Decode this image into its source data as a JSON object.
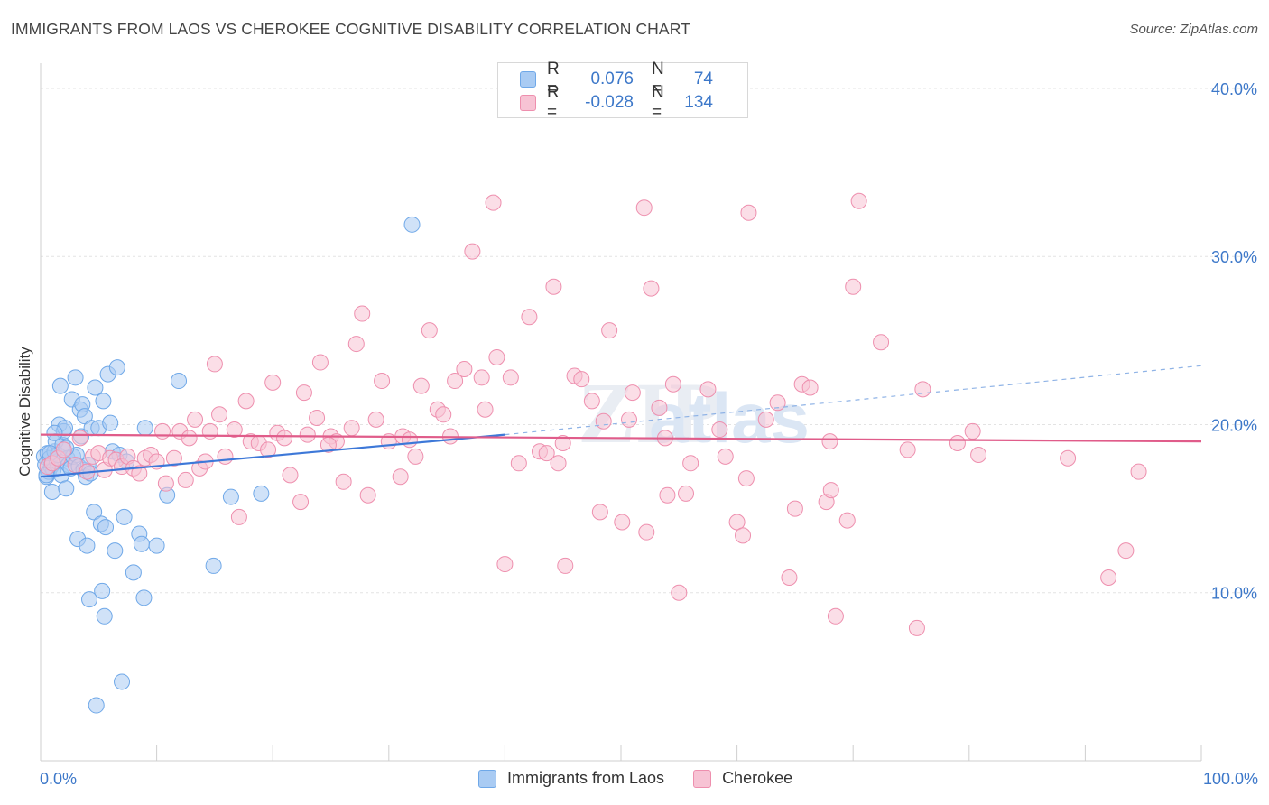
{
  "title": "IMMIGRANTS FROM LAOS VS CHEROKEE COGNITIVE DISABILITY CORRELATION CHART",
  "source": "Source: ZipAtlas.com",
  "watermark": "ZIPatlas",
  "legend_stats": [
    {
      "r_label": "R =",
      "r_value": "0.076",
      "n_label": "N =",
      "n_value": "74",
      "color": "#6fa8e8",
      "fill": "#a9cbf3"
    },
    {
      "r_label": "R =",
      "r_value": "-0.028",
      "n_label": "N =",
      "n_value": "134",
      "color": "#ee8fae",
      "fill": "#f7c3d4"
    }
  ],
  "chart_data": {
    "type": "scatter",
    "xlabel": "",
    "ylabel": "Cognitive Disability",
    "x_tick_labels": {
      "min": "0.0%",
      "max": "100.0%"
    },
    "y_tick_labels": [
      "10.0%",
      "20.0%",
      "30.0%",
      "40.0%"
    ],
    "y_ticks": [
      10,
      20,
      30,
      40
    ],
    "xlim": [
      0,
      100
    ],
    "ylim": [
      0,
      41.5
    ],
    "grid": true,
    "legend_position": "bottom",
    "series": [
      {
        "name": "Immigrants from Laos",
        "color": "#3d78d8",
        "fill": "#a9cbf3",
        "trend": {
          "x0": 0,
          "y0": 16.9,
          "x1": 40,
          "y1": 19.4,
          "dash_to_x": 100,
          "dash_to_y": 23.5
        },
        "points": [
          [
            0.3,
            18.1
          ],
          [
            0.4,
            17.6
          ],
          [
            0.5,
            16.9
          ],
          [
            0.6,
            18.3
          ],
          [
            0.7,
            17.2
          ],
          [
            0.8,
            18.0
          ],
          [
            0.9,
            17.5
          ],
          [
            1.0,
            16.0
          ],
          [
            1.1,
            17.3
          ],
          [
            1.2,
            18.4
          ],
          [
            1.3,
            19.0
          ],
          [
            1.4,
            17.8
          ],
          [
            1.5,
            18.2
          ],
          [
            1.6,
            20.0
          ],
          [
            1.7,
            22.3
          ],
          [
            1.8,
            17.0
          ],
          [
            1.9,
            18.8
          ],
          [
            2.0,
            19.6
          ],
          [
            2.1,
            19.8
          ],
          [
            2.2,
            16.2
          ],
          [
            2.3,
            18.0
          ],
          [
            2.4,
            17.6
          ],
          [
            2.6,
            17.4
          ],
          [
            2.7,
            21.5
          ],
          [
            2.8,
            18.1
          ],
          [
            3.0,
            22.8
          ],
          [
            3.1,
            18.2
          ],
          [
            3.2,
            13.2
          ],
          [
            3.3,
            17.5
          ],
          [
            3.4,
            20.9
          ],
          [
            3.5,
            19.3
          ],
          [
            3.6,
            21.2
          ],
          [
            3.7,
            17.3
          ],
          [
            3.8,
            20.5
          ],
          [
            3.9,
            16.9
          ],
          [
            4.0,
            12.8
          ],
          [
            4.1,
            17.6
          ],
          [
            4.2,
            9.6
          ],
          [
            4.3,
            17.1
          ],
          [
            4.4,
            19.8
          ],
          [
            4.6,
            14.8
          ],
          [
            4.7,
            22.2
          ],
          [
            4.8,
            3.3
          ],
          [
            5.0,
            19.8
          ],
          [
            5.2,
            14.1
          ],
          [
            5.3,
            10.1
          ],
          [
            5.4,
            21.4
          ],
          [
            5.5,
            8.6
          ],
          [
            5.6,
            13.9
          ],
          [
            5.8,
            23.0
          ],
          [
            6.0,
            20.1
          ],
          [
            6.2,
            18.4
          ],
          [
            6.4,
            12.5
          ],
          [
            6.6,
            23.4
          ],
          [
            6.8,
            18.2
          ],
          [
            7.0,
            4.7
          ],
          [
            7.2,
            14.5
          ],
          [
            7.4,
            17.8
          ],
          [
            8.0,
            11.2
          ],
          [
            8.5,
            13.5
          ],
          [
            8.7,
            12.9
          ],
          [
            8.9,
            9.7
          ],
          [
            9.0,
            19.8
          ],
          [
            10.0,
            12.8
          ],
          [
            10.9,
            15.8
          ],
          [
            11.9,
            22.6
          ],
          [
            14.9,
            11.6
          ],
          [
            16.4,
            15.7
          ],
          [
            19.0,
            15.9
          ],
          [
            32.0,
            31.9
          ],
          [
            0.5,
            17.0
          ],
          [
            1.2,
            19.5
          ],
          [
            2.2,
            18.6
          ],
          [
            0.8,
            18.3
          ]
        ]
      },
      {
        "name": "Cherokee",
        "color": "#e05c8a",
        "fill": "#f7c3d4",
        "trend": {
          "x0": 0,
          "y0": 19.4,
          "x1": 100,
          "y1": 19.0
        },
        "points": [
          [
            0.6,
            17.5
          ],
          [
            1.0,
            17.7
          ],
          [
            1.5,
            18.0
          ],
          [
            2.0,
            18.5
          ],
          [
            3.0,
            17.6
          ],
          [
            3.4,
            19.2
          ],
          [
            4.0,
            17.2
          ],
          [
            4.5,
            18.1
          ],
          [
            5.0,
            18.3
          ],
          [
            5.5,
            17.3
          ],
          [
            6.0,
            18.0
          ],
          [
            6.5,
            17.9
          ],
          [
            7.0,
            17.5
          ],
          [
            7.5,
            18.1
          ],
          [
            8.0,
            17.4
          ],
          [
            8.5,
            17.1
          ],
          [
            9.0,
            18.0
          ],
          [
            9.5,
            18.2
          ],
          [
            10.0,
            17.8
          ],
          [
            10.5,
            19.6
          ],
          [
            10.8,
            16.5
          ],
          [
            11.5,
            18.0
          ],
          [
            12.0,
            19.6
          ],
          [
            12.5,
            16.7
          ],
          [
            12.8,
            19.2
          ],
          [
            13.3,
            20.3
          ],
          [
            13.7,
            17.4
          ],
          [
            14.2,
            17.8
          ],
          [
            14.6,
            19.6
          ],
          [
            15.0,
            23.6
          ],
          [
            15.4,
            20.6
          ],
          [
            15.9,
            18.1
          ],
          [
            16.7,
            19.7
          ],
          [
            17.1,
            14.5
          ],
          [
            17.7,
            21.4
          ],
          [
            18.1,
            19.0
          ],
          [
            18.8,
            18.9
          ],
          [
            19.6,
            18.5
          ],
          [
            20.0,
            22.5
          ],
          [
            20.4,
            19.5
          ],
          [
            21.0,
            19.2
          ],
          [
            21.5,
            17.0
          ],
          [
            22.4,
            15.4
          ],
          [
            22.7,
            21.9
          ],
          [
            23.0,
            19.4
          ],
          [
            23.8,
            20.4
          ],
          [
            24.1,
            23.7
          ],
          [
            25.0,
            19.3
          ],
          [
            25.5,
            19.0
          ],
          [
            26.1,
            16.6
          ],
          [
            26.8,
            19.8
          ],
          [
            27.2,
            24.8
          ],
          [
            27.7,
            26.6
          ],
          [
            28.2,
            15.8
          ],
          [
            28.9,
            20.3
          ],
          [
            29.4,
            22.6
          ],
          [
            30.0,
            19.0
          ],
          [
            31.0,
            16.9
          ],
          [
            31.2,
            19.3
          ],
          [
            31.8,
            19.1
          ],
          [
            32.3,
            18.1
          ],
          [
            32.8,
            22.3
          ],
          [
            33.5,
            25.6
          ],
          [
            34.2,
            20.9
          ],
          [
            34.7,
            20.6
          ],
          [
            35.3,
            19.3
          ],
          [
            35.7,
            22.6
          ],
          [
            36.5,
            23.3
          ],
          [
            37.2,
            30.3
          ],
          [
            38.0,
            22.8
          ],
          [
            38.3,
            20.9
          ],
          [
            39.0,
            33.2
          ],
          [
            39.3,
            24.0
          ],
          [
            40.0,
            11.7
          ],
          [
            40.5,
            22.8
          ],
          [
            41.2,
            17.7
          ],
          [
            42.1,
            26.4
          ],
          [
            43.0,
            18.4
          ],
          [
            43.6,
            18.3
          ],
          [
            44.2,
            28.2
          ],
          [
            44.6,
            17.7
          ],
          [
            45.2,
            11.6
          ],
          [
            46.0,
            22.9
          ],
          [
            46.6,
            22.7
          ],
          [
            47.5,
            21.4
          ],
          [
            48.2,
            14.8
          ],
          [
            48.5,
            20.2
          ],
          [
            49.0,
            25.6
          ],
          [
            50.1,
            14.2
          ],
          [
            50.7,
            20.3
          ],
          [
            51.0,
            21.9
          ],
          [
            52.0,
            32.9
          ],
          [
            52.2,
            13.6
          ],
          [
            52.6,
            28.1
          ],
          [
            53.3,
            21.0
          ],
          [
            54.0,
            15.8
          ],
          [
            54.5,
            22.4
          ],
          [
            55.0,
            10.0
          ],
          [
            55.6,
            15.9
          ],
          [
            56.0,
            17.7
          ],
          [
            57.5,
            22.1
          ],
          [
            58.5,
            19.7
          ],
          [
            59.0,
            18.1
          ],
          [
            60.0,
            14.2
          ],
          [
            60.5,
            13.4
          ],
          [
            60.8,
            16.8
          ],
          [
            61.0,
            32.6
          ],
          [
            62.5,
            20.3
          ],
          [
            63.5,
            21.3
          ],
          [
            64.5,
            10.9
          ],
          [
            65.0,
            15.0
          ],
          [
            65.6,
            22.4
          ],
          [
            66.3,
            22.2
          ],
          [
            67.7,
            15.4
          ],
          [
            68.1,
            16.1
          ],
          [
            68.5,
            8.6
          ],
          [
            69.5,
            14.3
          ],
          [
            70.0,
            28.2
          ],
          [
            70.5,
            33.3
          ],
          [
            72.4,
            24.9
          ],
          [
            74.7,
            18.5
          ],
          [
            75.5,
            7.9
          ],
          [
            76.0,
            22.1
          ],
          [
            79.0,
            18.9
          ],
          [
            80.3,
            19.6
          ],
          [
            80.8,
            18.2
          ],
          [
            88.5,
            18.0
          ],
          [
            92.0,
            10.9
          ],
          [
            93.5,
            12.5
          ],
          [
            94.6,
            17.2
          ],
          [
            68.0,
            19.0
          ],
          [
            53.8,
            19.2
          ],
          [
            45.0,
            18.9
          ],
          [
            24.8,
            18.8
          ]
        ]
      }
    ]
  }
}
